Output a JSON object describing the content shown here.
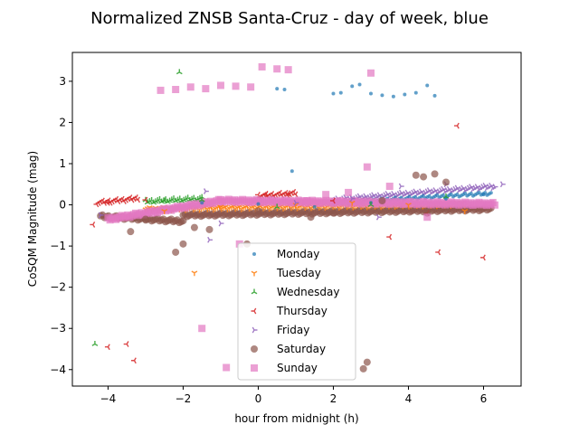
{
  "chart_data": {
    "type": "scatter",
    "title": "Normalized ZNSB Santa-Cruz - day of week, blue",
    "xlabel": "hour from midnight (h)",
    "ylabel": "CoSQM Magnitude (mag)",
    "xlim": [
      -4.95,
      7.0
    ],
    "ylim": [
      -4.4,
      3.7
    ],
    "xticks": [
      -4,
      -2,
      0,
      2,
      4,
      6
    ],
    "xtick_labels": [
      "−4",
      "−2",
      "0",
      "2",
      "4",
      "6"
    ],
    "yticks": [
      -4,
      -3,
      -2,
      -1,
      0,
      1,
      2,
      3
    ],
    "ytick_labels": [
      "−4",
      "−3",
      "−2",
      "−1",
      "0",
      "1",
      "2",
      "3"
    ],
    "grid": false,
    "legend_position": "lower center",
    "series": [
      {
        "name": "Monday",
        "marker": "point",
        "color": "#1f77b4",
        "points": [
          [
            0.5,
            2.82
          ],
          [
            0.7,
            2.8
          ],
          [
            0.9,
            0.82
          ],
          [
            2.0,
            2.7
          ],
          [
            2.2,
            2.72
          ],
          [
            2.5,
            2.88
          ],
          [
            2.7,
            2.92
          ],
          [
            3.0,
            2.7
          ],
          [
            3.3,
            2.66
          ],
          [
            3.6,
            2.63
          ],
          [
            3.9,
            2.68
          ],
          [
            4.2,
            2.72
          ],
          [
            4.5,
            2.9
          ],
          [
            4.7,
            2.65
          ],
          [
            -1.5,
            0.05
          ],
          [
            0.0,
            0.02
          ],
          [
            1.5,
            -0.05
          ],
          [
            3.0,
            0.05
          ],
          [
            5.0,
            0.15
          ],
          [
            6.0,
            0.25
          ]
        ]
      },
      {
        "name": "Tuesday",
        "marker": "tri_down",
        "color": "#ff7f0e",
        "points": [
          [
            -1.7,
            -1.65
          ],
          [
            -2.5,
            -0.15
          ],
          [
            -1.0,
            -0.05
          ],
          [
            1.0,
            0.0
          ],
          [
            2.5,
            0.05
          ],
          [
            4.0,
            0.0
          ],
          [
            5.5,
            -0.15
          ]
        ]
      },
      {
        "name": "Wednesday",
        "marker": "tri_up",
        "color": "#2ca02c",
        "points": [
          [
            -2.1,
            3.22
          ],
          [
            -4.35,
            -3.38
          ],
          [
            -2.5,
            0.1
          ],
          [
            -1.5,
            0.12
          ],
          [
            0.5,
            -0.05
          ],
          [
            3.0,
            0.0
          ],
          [
            5.0,
            0.2
          ]
        ]
      },
      {
        "name": "Thursday",
        "marker": "tri_left",
        "color": "#d62728",
        "points": [
          [
            -4.4,
            -0.48
          ],
          [
            -4.0,
            -3.45
          ],
          [
            -3.5,
            -3.38
          ],
          [
            -3.3,
            -3.78
          ],
          [
            -4.0,
            0.05
          ],
          [
            -3.0,
            0.12
          ],
          [
            0.2,
            0.25
          ],
          [
            0.8,
            0.28
          ],
          [
            3.5,
            -0.78
          ],
          [
            4.8,
            -1.15
          ],
          [
            5.3,
            1.92
          ],
          [
            6.0,
            -1.28
          ],
          [
            2.0,
            0.1
          ],
          [
            4.5,
            -0.2
          ]
        ]
      },
      {
        "name": "Friday",
        "marker": "tri_right",
        "color": "#9467bd",
        "points": [
          [
            -4.2,
            -0.25
          ],
          [
            -1.4,
            0.33
          ],
          [
            -1.3,
            -0.85
          ],
          [
            -1.0,
            -0.45
          ],
          [
            3.2,
            -0.3
          ],
          [
            3.8,
            0.45
          ],
          [
            5.0,
            0.5
          ],
          [
            6.5,
            0.5
          ],
          [
            1.0,
            0.05
          ],
          [
            2.5,
            0.15
          ]
        ]
      },
      {
        "name": "Saturday",
        "marker": "circle",
        "color": "#8c564b",
        "points": [
          [
            -3.4,
            -0.65
          ],
          [
            -3.0,
            -0.35
          ],
          [
            -2.2,
            -1.15
          ],
          [
            -2.0,
            -0.95
          ],
          [
            -1.7,
            -0.55
          ],
          [
            -1.3,
            -0.6
          ],
          [
            -0.3,
            -0.95
          ],
          [
            0.0,
            -0.15
          ],
          [
            1.4,
            -0.3
          ],
          [
            2.9,
            -3.82
          ],
          [
            2.8,
            -3.98
          ],
          [
            4.2,
            0.72
          ],
          [
            4.4,
            0.68
          ],
          [
            4.7,
            0.75
          ],
          [
            5.0,
            0.55
          ],
          [
            4.5,
            -0.2
          ],
          [
            2.0,
            -0.2
          ],
          [
            3.3,
            0.1
          ]
        ]
      },
      {
        "name": "Sunday",
        "marker": "square",
        "color": "#e377c2",
        "points": [
          [
            -2.6,
            2.78
          ],
          [
            -2.2,
            2.8
          ],
          [
            -1.8,
            2.86
          ],
          [
            -1.4,
            2.82
          ],
          [
            -1.0,
            2.9
          ],
          [
            -0.6,
            2.88
          ],
          [
            -0.2,
            2.86
          ],
          [
            0.1,
            3.35
          ],
          [
            0.5,
            3.3
          ],
          [
            0.8,
            3.28
          ],
          [
            3.0,
            3.2
          ],
          [
            -1.5,
            -3.0
          ],
          [
            -0.85,
            -3.95
          ],
          [
            -0.5,
            -0.95
          ],
          [
            2.9,
            0.92
          ],
          [
            3.5,
            0.45
          ],
          [
            4.5,
            -0.3
          ],
          [
            1.8,
            0.25
          ],
          [
            1.3,
            0.1
          ],
          [
            2.4,
            0.3
          ]
        ]
      }
    ],
    "bands": [
      {
        "series": "Thursday",
        "x_from": -4.3,
        "x_to": -3.2,
        "y_from": 0.05,
        "y_to": 0.16
      },
      {
        "series": "Wednesday",
        "x_from": -3.0,
        "x_to": -1.5,
        "y_from": 0.08,
        "y_to": 0.15
      },
      {
        "series": "Thursday",
        "x_from": 0.0,
        "x_to": 1.0,
        "y_from": 0.22,
        "y_to": 0.28
      },
      {
        "series": "Saturday",
        "x_from": -4.2,
        "x_to": -2.0,
        "y_from": -0.28,
        "y_to": -0.4
      },
      {
        "series": "Saturday",
        "x_from": -2.0,
        "x_to": 6.2,
        "y_from": -0.25,
        "y_to": -0.1
      },
      {
        "series": "Tuesday",
        "x_from": -3.0,
        "x_to": 5.5,
        "y_from": -0.1,
        "y_to": 0.02
      },
      {
        "series": "Friday",
        "x_from": 2.0,
        "x_to": 6.3,
        "y_from": 0.12,
        "y_to": 0.45
      },
      {
        "series": "Monday",
        "x_from": 2.0,
        "x_to": 6.2,
        "y_from": 0.05,
        "y_to": 0.28
      },
      {
        "series": "Sunday",
        "x_from": -4.0,
        "x_to": -1.0,
        "y_from": -0.35,
        "y_to": 0.1
      },
      {
        "series": "Sunday",
        "x_from": -1.0,
        "x_to": 6.3,
        "y_from": 0.1,
        "y_to": 0.02
      }
    ]
  }
}
